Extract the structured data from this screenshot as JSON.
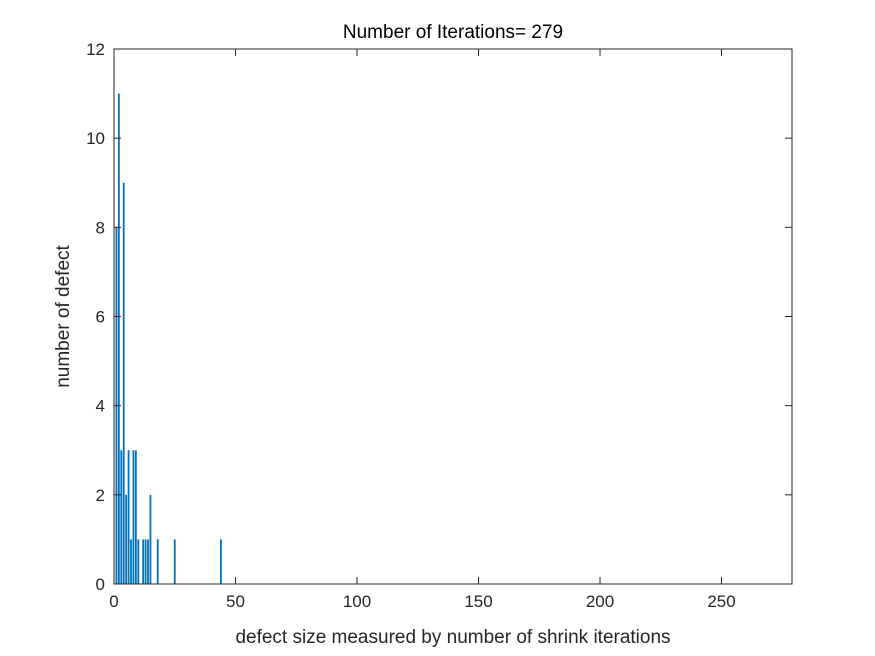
{
  "chart_data": {
    "type": "bar",
    "title": "Number of Iterations= 279",
    "xlabel": "defect size measured by number of shrink iterations",
    "ylabel": "number of defect",
    "xlim": [
      0,
      279
    ],
    "ylim": [
      0,
      12
    ],
    "xticks": [
      0,
      50,
      100,
      150,
      200,
      250
    ],
    "yticks": [
      0,
      2,
      4,
      6,
      8,
      10,
      12
    ],
    "grid": false,
    "bar_color": "#0072BD",
    "series": [
      {
        "x": [
          1,
          2,
          3,
          4,
          5,
          6,
          7,
          8,
          9,
          10,
          12,
          13,
          14,
          15,
          18,
          25,
          44
        ],
        "values": [
          8,
          11,
          3,
          9,
          2,
          3,
          1,
          3,
          3,
          1,
          1,
          1,
          1,
          2,
          1,
          1,
          1
        ]
      }
    ]
  }
}
